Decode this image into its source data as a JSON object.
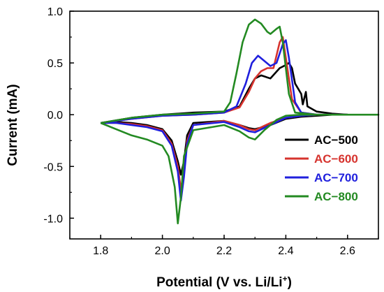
{
  "chart_data": {
    "type": "line",
    "title": "",
    "xlabel": "Potential (V vs. Li/Li",
    "xlabel_sup": "+",
    "xlabel_end": ")",
    "ylabel": "Current (mA)",
    "xlim": [
      1.7,
      2.7
    ],
    "ylim": [
      -1.2,
      1.0
    ],
    "x_ticks": [
      "1.8",
      "2.0",
      "2.2",
      "2.4",
      "2.6"
    ],
    "x_tick_values": [
      1.8,
      2.0,
      2.2,
      2.4,
      2.6
    ],
    "y_ticks": [
      "-1.0",
      "-0.5",
      "0.0",
      "0.5",
      "1.0"
    ],
    "y_tick_values": [
      -1.0,
      -0.5,
      0.0,
      0.5,
      1.0
    ],
    "legend_position": "bottom-right",
    "grid": false,
    "series": [
      {
        "name": "AC−500",
        "color": "#000000",
        "points": [
          [
            1.8,
            -0.08
          ],
          [
            1.85,
            -0.07
          ],
          [
            1.9,
            -0.08
          ],
          [
            1.95,
            -0.1
          ],
          [
            2.0,
            -0.14
          ],
          [
            2.03,
            -0.25
          ],
          [
            2.05,
            -0.45
          ],
          [
            2.06,
            -0.58
          ],
          [
            2.07,
            -0.45
          ],
          [
            2.08,
            -0.2
          ],
          [
            2.1,
            -0.08
          ],
          [
            2.2,
            -0.06
          ],
          [
            2.25,
            -0.1
          ],
          [
            2.28,
            -0.13
          ],
          [
            2.3,
            -0.14
          ],
          [
            2.35,
            -0.1
          ],
          [
            2.4,
            -0.04
          ],
          [
            2.45,
            -0.02
          ],
          [
            2.5,
            -0.01
          ],
          [
            2.55,
            0.0
          ],
          [
            2.6,
            0.0
          ],
          [
            2.55,
            0.01
          ],
          [
            2.5,
            0.03
          ],
          [
            2.47,
            0.08
          ],
          [
            2.465,
            0.22
          ],
          [
            2.455,
            0.1
          ],
          [
            2.45,
            0.2
          ],
          [
            2.44,
            0.25
          ],
          [
            2.43,
            0.3
          ],
          [
            2.42,
            0.45
          ],
          [
            2.41,
            0.5
          ],
          [
            2.4,
            0.48
          ],
          [
            2.38,
            0.45
          ],
          [
            2.35,
            0.35
          ],
          [
            2.32,
            0.38
          ],
          [
            2.3,
            0.35
          ],
          [
            2.28,
            0.25
          ],
          [
            2.25,
            0.08
          ],
          [
            2.2,
            0.03
          ],
          [
            2.1,
            0.02
          ],
          [
            2.0,
            0.0
          ],
          [
            1.9,
            -0.03
          ],
          [
            1.8,
            -0.08
          ]
        ]
      },
      {
        "name": "AC−600",
        "color": "#d6332e",
        "points": [
          [
            1.8,
            -0.08
          ],
          [
            1.85,
            -0.08
          ],
          [
            1.9,
            -0.09
          ],
          [
            1.95,
            -0.11
          ],
          [
            2.0,
            -0.15
          ],
          [
            2.03,
            -0.28
          ],
          [
            2.05,
            -0.5
          ],
          [
            2.06,
            -0.72
          ],
          [
            2.07,
            -0.55
          ],
          [
            2.08,
            -0.25
          ],
          [
            2.1,
            -0.1
          ],
          [
            2.2,
            -0.06
          ],
          [
            2.25,
            -0.1
          ],
          [
            2.28,
            -0.14
          ],
          [
            2.3,
            -0.15
          ],
          [
            2.35,
            -0.08
          ],
          [
            2.4,
            -0.03
          ],
          [
            2.45,
            -0.01
          ],
          [
            2.5,
            0.0
          ],
          [
            2.55,
            0.0
          ],
          [
            2.6,
            0.0
          ],
          [
            2.5,
            0.0
          ],
          [
            2.45,
            0.02
          ],
          [
            2.42,
            0.15
          ],
          [
            2.4,
            0.55
          ],
          [
            2.39,
            0.75
          ],
          [
            2.38,
            0.7
          ],
          [
            2.36,
            0.45
          ],
          [
            2.34,
            0.45
          ],
          [
            2.32,
            0.42
          ],
          [
            2.3,
            0.35
          ],
          [
            2.28,
            0.22
          ],
          [
            2.25,
            0.07
          ],
          [
            2.2,
            0.02
          ],
          [
            2.1,
            0.0
          ],
          [
            2.0,
            -0.01
          ],
          [
            1.9,
            -0.04
          ],
          [
            1.8,
            -0.08
          ]
        ]
      },
      {
        "name": "AC−700",
        "color": "#1f1fdd",
        "points": [
          [
            1.8,
            -0.08
          ],
          [
            1.85,
            -0.08
          ],
          [
            1.9,
            -0.1
          ],
          [
            1.95,
            -0.12
          ],
          [
            2.0,
            -0.16
          ],
          [
            2.03,
            -0.3
          ],
          [
            2.05,
            -0.55
          ],
          [
            2.06,
            -0.83
          ],
          [
            2.07,
            -0.6
          ],
          [
            2.08,
            -0.28
          ],
          [
            2.1,
            -0.1
          ],
          [
            2.2,
            -0.07
          ],
          [
            2.25,
            -0.12
          ],
          [
            2.28,
            -0.16
          ],
          [
            2.3,
            -0.17
          ],
          [
            2.35,
            -0.1
          ],
          [
            2.4,
            -0.03
          ],
          [
            2.45,
            -0.01
          ],
          [
            2.5,
            0.0
          ],
          [
            2.55,
            0.0
          ],
          [
            2.6,
            0.0
          ],
          [
            2.5,
            0.0
          ],
          [
            2.45,
            0.02
          ],
          [
            2.43,
            0.12
          ],
          [
            2.41,
            0.55
          ],
          [
            2.4,
            0.72
          ],
          [
            2.39,
            0.68
          ],
          [
            2.37,
            0.5
          ],
          [
            2.35,
            0.47
          ],
          [
            2.33,
            0.52
          ],
          [
            2.31,
            0.57
          ],
          [
            2.29,
            0.5
          ],
          [
            2.27,
            0.3
          ],
          [
            2.24,
            0.08
          ],
          [
            2.2,
            0.02
          ],
          [
            2.1,
            0.0
          ],
          [
            2.0,
            -0.01
          ],
          [
            1.9,
            -0.04
          ],
          [
            1.8,
            -0.08
          ]
        ]
      },
      {
        "name": "AC−800",
        "color": "#238a22",
        "points": [
          [
            1.8,
            -0.08
          ],
          [
            1.85,
            -0.14
          ],
          [
            1.9,
            -0.2
          ],
          [
            1.95,
            -0.24
          ],
          [
            2.0,
            -0.3
          ],
          [
            2.02,
            -0.4
          ],
          [
            2.04,
            -0.7
          ],
          [
            2.05,
            -1.05
          ],
          [
            2.06,
            -0.8
          ],
          [
            2.07,
            -0.4
          ],
          [
            2.1,
            -0.15
          ],
          [
            2.2,
            -0.1
          ],
          [
            2.25,
            -0.16
          ],
          [
            2.28,
            -0.22
          ],
          [
            2.3,
            -0.24
          ],
          [
            2.33,
            -0.15
          ],
          [
            2.37,
            -0.05
          ],
          [
            2.4,
            -0.01
          ],
          [
            2.45,
            0.0
          ],
          [
            2.5,
            0.0
          ],
          [
            2.6,
            0.0
          ],
          [
            2.7,
            0.0
          ],
          [
            2.5,
            0.0
          ],
          [
            2.43,
            0.02
          ],
          [
            2.41,
            0.2
          ],
          [
            2.39,
            0.7
          ],
          [
            2.38,
            0.85
          ],
          [
            2.37,
            0.83
          ],
          [
            2.35,
            0.78
          ],
          [
            2.34,
            0.8
          ],
          [
            2.32,
            0.88
          ],
          [
            2.3,
            0.92
          ],
          [
            2.28,
            0.87
          ],
          [
            2.26,
            0.7
          ],
          [
            2.24,
            0.4
          ],
          [
            2.22,
            0.12
          ],
          [
            2.2,
            0.03
          ],
          [
            2.1,
            0.01
          ],
          [
            2.0,
            0.0
          ],
          [
            1.9,
            -0.03
          ],
          [
            1.8,
            -0.08
          ]
        ]
      }
    ]
  }
}
